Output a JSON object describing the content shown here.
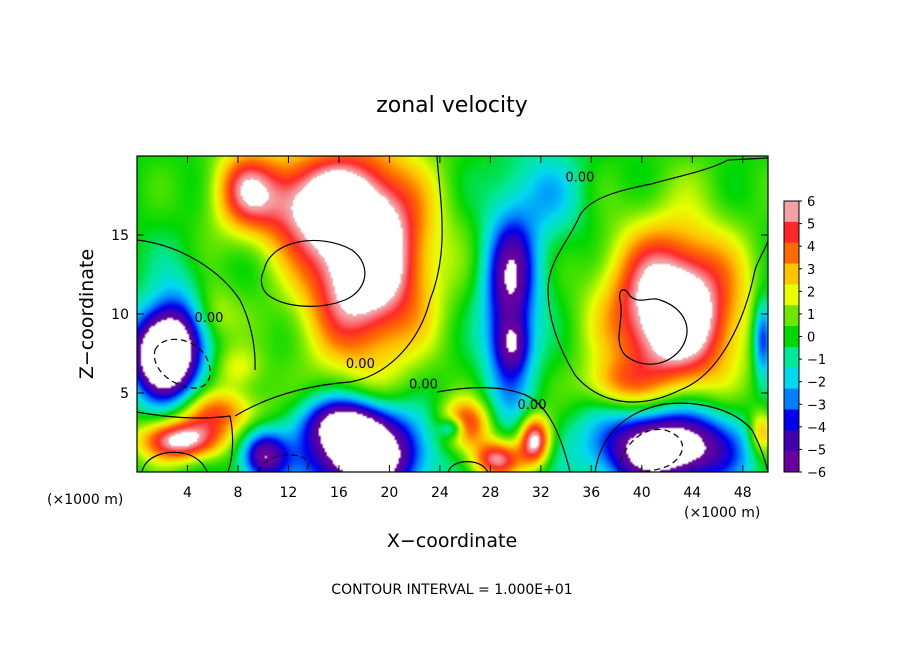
{
  "chart_data": {
    "type": "heatmap",
    "title": "zonal velocity",
    "xlabel": "X−coordinate",
    "ylabel": "Z−coordinate",
    "x_unit_left": "(×1000 m)",
    "x_unit_right": "(×1000 m)",
    "footer": "CONTOUR INTERVAL = 1.000E+01",
    "xlim": [
      0,
      50
    ],
    "ylim": [
      0,
      20
    ],
    "x_ticks": [
      4,
      8,
      12,
      16,
      20,
      24,
      28,
      32,
      36,
      40,
      44,
      48
    ],
    "x_tick_labels": [
      "4",
      "8",
      "12",
      "16",
      "20",
      "24",
      "28",
      "32",
      "36",
      "40",
      "44",
      "48"
    ],
    "y_ticks": [
      5,
      10,
      15
    ],
    "y_tick_labels": [
      "5",
      "10",
      "15"
    ],
    "colorbar": {
      "min": -6,
      "max": 6,
      "labels": [
        "6",
        "5",
        "4",
        "3",
        "2",
        "1",
        "0",
        "−1",
        "−2",
        "−3",
        "−4",
        "−5",
        "−6"
      ],
      "colors": [
        "#f4a0a4",
        "#ff2828",
        "#ff6a00",
        "#ffc400",
        "#e8ff00",
        "#6ee800",
        "#00d800",
        "#00e89a",
        "#00d8f0",
        "#0080ff",
        "#0000ee",
        "#4000b0",
        "#6a00a0"
      ]
    },
    "contour_labels": [
      {
        "text": "0.00",
        "x": 35.1,
        "z": 18.7
      },
      {
        "text": "0.00",
        "x": 5.7,
        "z": 9.8
      },
      {
        "text": "0.00",
        "x": 17.7,
        "z": 6.9
      },
      {
        "text": "0.00",
        "x": 22.7,
        "z": 5.6
      },
      {
        "text": "0.00",
        "x": 31.3,
        "z": 4.3
      }
    ],
    "field_blobs": [
      {
        "x": 18.1,
        "z": 13.7,
        "rx": 4.9,
        "rz": 6.3,
        "v": 9.0
      },
      {
        "x": 12.8,
        "z": 17.2,
        "rx": 5.2,
        "rz": 3.0,
        "v": 4.8
      },
      {
        "x": 8.5,
        "z": 18.0,
        "rx": 2.4,
        "rz": 2.6,
        "v": 3.5
      },
      {
        "x": 42.5,
        "z": 10.2,
        "rx": 5.0,
        "rz": 5.0,
        "v": 9.0
      },
      {
        "x": 38.0,
        "z": 5.5,
        "rx": 2.8,
        "rz": 1.6,
        "v": 2.5
      },
      {
        "x": 29.5,
        "z": 10.0,
        "rx": 2.0,
        "rz": 6.0,
        "v": -5.0
      },
      {
        "x": 29.8,
        "z": 8.0,
        "rx": 1.3,
        "rz": 1.6,
        "v": -2.5
      },
      {
        "x": 30.0,
        "z": 13.0,
        "rx": 2.4,
        "rz": 3.0,
        "v": -2.0
      },
      {
        "x": 32.5,
        "z": 17.5,
        "rx": 3.2,
        "rz": 3.0,
        "v": -2.0
      },
      {
        "x": 1.8,
        "z": 7.5,
        "rx": 2.3,
        "rz": 2.6,
        "v": -9.0
      },
      {
        "x": 3.5,
        "z": 8.0,
        "rx": 2.2,
        "rz": 4.0,
        "v": -4.0
      },
      {
        "x": 18.0,
        "z": 1.0,
        "rx": 4.5,
        "rz": 2.5,
        "v": -9.0
      },
      {
        "x": 16.5,
        "z": 3.2,
        "rx": 3.6,
        "rz": 1.6,
        "v": -5.0
      },
      {
        "x": 42.0,
        "z": 1.6,
        "rx": 5.5,
        "rz": 2.5,
        "v": -9.0
      },
      {
        "x": 49.6,
        "z": 8.5,
        "rx": 0.8,
        "rz": 2.5,
        "v": -5.0
      },
      {
        "x": 6.5,
        "z": 3.8,
        "rx": 3.5,
        "rz": 1.4,
        "v": 4.0
      },
      {
        "x": 3.5,
        "z": 2.0,
        "rx": 3.2,
        "rz": 1.3,
        "v": 7.0
      },
      {
        "x": 26.0,
        "z": 3.0,
        "rx": 2.0,
        "rz": 1.5,
        "v": 5.0
      },
      {
        "x": 31.5,
        "z": 2.0,
        "rx": 1.2,
        "rz": 1.5,
        "v": 7.0
      },
      {
        "x": 28.5,
        "z": 0.8,
        "rx": 2.0,
        "rz": 1.2,
        "v": 6.0
      },
      {
        "x": 25.0,
        "z": 2.8,
        "rx": 1.0,
        "rz": 0.7,
        "v": -4.0
      },
      {
        "x": 49.5,
        "z": 2.5,
        "rx": 1.0,
        "rz": 1.5,
        "v": 4.0
      },
      {
        "x": 6.0,
        "z": 10.0,
        "rx": 2.0,
        "rz": 2.0,
        "v": 2.0
      },
      {
        "x": 8.0,
        "z": 6.5,
        "rx": 2.0,
        "rz": 1.4,
        "v": 2.0
      },
      {
        "x": 10.0,
        "z": 1.0,
        "rx": 1.8,
        "rz": 1.6,
        "v": -6.0
      },
      {
        "x": 45.0,
        "z": 19.0,
        "rx": 5.0,
        "rz": 2.0,
        "v": 0.3
      }
    ]
  }
}
